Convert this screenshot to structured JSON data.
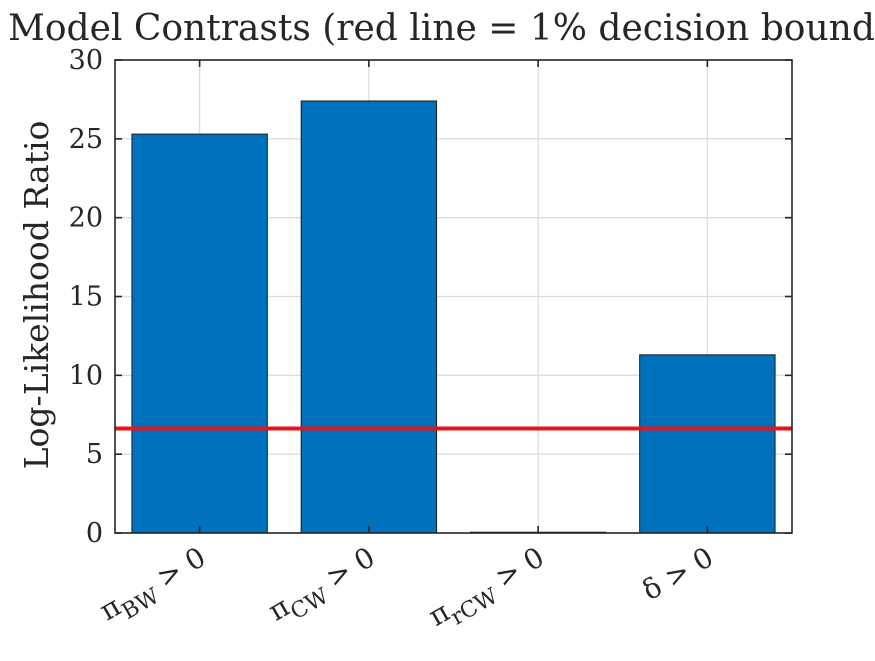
{
  "chart_data": {
    "type": "bar",
    "title": "Model Contrasts (red line = 1% decision bound",
    "xlabel": "",
    "ylabel": "Log-Likelihood Ratio",
    "categories": [
      {
        "label": "π",
        "sub": "BW",
        "suffix": " > 0"
      },
      {
        "label": "π",
        "sub": "CW",
        "suffix": " > 0"
      },
      {
        "label": "π",
        "sub": "rCW",
        "suffix": " > 0"
      },
      {
        "label": "δ",
        "sub": "",
        "suffix": " > 0"
      }
    ],
    "values": [
      25.3,
      27.4,
      0.05,
      11.3
    ],
    "ylim": [
      0,
      30
    ],
    "yticks": [
      "0",
      "5",
      "10",
      "15",
      "20",
      "25",
      "30"
    ],
    "reference_line": 6.63,
    "grid": true,
    "colors": {
      "bar": "#0072BD",
      "reference": "#E8141B",
      "axis": "#262626",
      "grid": "#DCDCDC"
    }
  }
}
